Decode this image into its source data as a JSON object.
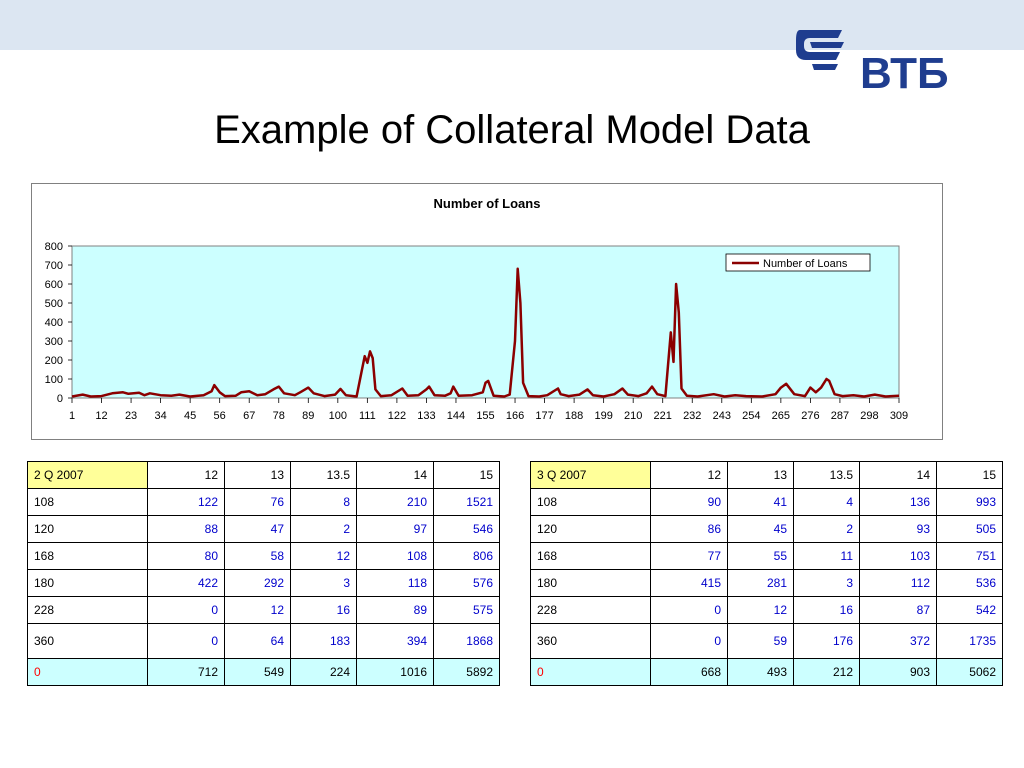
{
  "slide": {
    "title": "Example of Collateral Model Data"
  },
  "logo": {
    "text": "ВТБ",
    "color": "#1f3d8f"
  },
  "chart_data": {
    "type": "line",
    "title": "Number of Loans",
    "xlabel": "",
    "ylabel": "",
    "ylim": [
      0,
      800
    ],
    "yticks": [
      0,
      100,
      200,
      300,
      400,
      500,
      600,
      700,
      800
    ],
    "xlim": [
      1,
      309
    ],
    "xticks": [
      1,
      12,
      23,
      34,
      45,
      56,
      67,
      78,
      89,
      100,
      111,
      122,
      133,
      144,
      155,
      166,
      177,
      188,
      199,
      210,
      221,
      232,
      243,
      254,
      265,
      276,
      287,
      298,
      309
    ],
    "grid": false,
    "legend": "top-right",
    "plot_background": "#ccffff",
    "series": [
      {
        "name": "Number of Loans",
        "color": "#8b0000",
        "points": [
          [
            1,
            8
          ],
          [
            5,
            18
          ],
          [
            8,
            8
          ],
          [
            12,
            10
          ],
          [
            16,
            25
          ],
          [
            20,
            30
          ],
          [
            22,
            22
          ],
          [
            26,
            28
          ],
          [
            28,
            15
          ],
          [
            30,
            25
          ],
          [
            34,
            15
          ],
          [
            38,
            12
          ],
          [
            41,
            18
          ],
          [
            45,
            8
          ],
          [
            50,
            15
          ],
          [
            53,
            35
          ],
          [
            54,
            68
          ],
          [
            56,
            30
          ],
          [
            58,
            10
          ],
          [
            62,
            12
          ],
          [
            64,
            30
          ],
          [
            67,
            35
          ],
          [
            70,
            15
          ],
          [
            73,
            20
          ],
          [
            76,
            45
          ],
          [
            78,
            60
          ],
          [
            80,
            25
          ],
          [
            84,
            15
          ],
          [
            86,
            30
          ],
          [
            89,
            55
          ],
          [
            91,
            25
          ],
          [
            95,
            10
          ],
          [
            99,
            18
          ],
          [
            101,
            48
          ],
          [
            103,
            15
          ],
          [
            107,
            8
          ],
          [
            109,
            150
          ],
          [
            110,
            220
          ],
          [
            111,
            185
          ],
          [
            112,
            245
          ],
          [
            113,
            210
          ],
          [
            114,
            45
          ],
          [
            116,
            10
          ],
          [
            120,
            15
          ],
          [
            124,
            50
          ],
          [
            126,
            12
          ],
          [
            130,
            15
          ],
          [
            133,
            45
          ],
          [
            134,
            60
          ],
          [
            136,
            15
          ],
          [
            140,
            12
          ],
          [
            142,
            25
          ],
          [
            143,
            60
          ],
          [
            145,
            12
          ],
          [
            150,
            15
          ],
          [
            154,
            30
          ],
          [
            155,
            80
          ],
          [
            156,
            90
          ],
          [
            158,
            12
          ],
          [
            162,
            8
          ],
          [
            164,
            18
          ],
          [
            166,
            300
          ],
          [
            167,
            680
          ],
          [
            168,
            500
          ],
          [
            169,
            80
          ],
          [
            171,
            10
          ],
          [
            175,
            8
          ],
          [
            178,
            15
          ],
          [
            182,
            50
          ],
          [
            183,
            20
          ],
          [
            186,
            10
          ],
          [
            190,
            18
          ],
          [
            193,
            45
          ],
          [
            195,
            15
          ],
          [
            199,
            8
          ],
          [
            203,
            20
          ],
          [
            206,
            50
          ],
          [
            208,
            18
          ],
          [
            212,
            10
          ],
          [
            215,
            25
          ],
          [
            217,
            60
          ],
          [
            219,
            20
          ],
          [
            222,
            10
          ],
          [
            224,
            345
          ],
          [
            225,
            190
          ],
          [
            226,
            600
          ],
          [
            227,
            450
          ],
          [
            228,
            50
          ],
          [
            230,
            12
          ],
          [
            234,
            8
          ],
          [
            240,
            20
          ],
          [
            244,
            8
          ],
          [
            248,
            15
          ],
          [
            252,
            10
          ],
          [
            258,
            8
          ],
          [
            263,
            20
          ],
          [
            265,
            55
          ],
          [
            267,
            75
          ],
          [
            270,
            20
          ],
          [
            274,
            10
          ],
          [
            276,
            55
          ],
          [
            278,
            30
          ],
          [
            280,
            55
          ],
          [
            282,
            100
          ],
          [
            283,
            90
          ],
          [
            285,
            20
          ],
          [
            288,
            10
          ],
          [
            292,
            15
          ],
          [
            296,
            8
          ],
          [
            300,
            18
          ],
          [
            304,
            8
          ],
          [
            309,
            12
          ]
        ]
      }
    ]
  },
  "tables": [
    {
      "header": [
        "2 Q 2007",
        "12",
        "13",
        "13.5",
        "14",
        "15"
      ],
      "rows": [
        [
          "108",
          "122",
          "76",
          "8",
          "210",
          "1521"
        ],
        [
          "120",
          "88",
          "47",
          "2",
          "97",
          "546"
        ],
        [
          "168",
          "80",
          "58",
          "12",
          "108",
          "806"
        ],
        [
          "180",
          "422",
          "292",
          "3",
          "118",
          "576"
        ],
        [
          "228",
          "0",
          "12",
          "16",
          "89",
          "575"
        ],
        [
          "360",
          "0",
          "64",
          "183",
          "394",
          "1868"
        ]
      ],
      "total": [
        "0",
        "712",
        "549",
        "224",
        "1016",
        "5892"
      ]
    },
    {
      "header": [
        "3 Q 2007",
        "12",
        "13",
        "13.5",
        "14",
        "15"
      ],
      "rows": [
        [
          "108",
          "90",
          "41",
          "4",
          "136",
          "993"
        ],
        [
          "120",
          "86",
          "45",
          "2",
          "93",
          "505"
        ],
        [
          "168",
          "77",
          "55",
          "11",
          "103",
          "751"
        ],
        [
          "180",
          "415",
          "281",
          "3",
          "112",
          "536"
        ],
        [
          "228",
          "0",
          "12",
          "16",
          "87",
          "542"
        ],
        [
          "360",
          "0",
          "59",
          "176",
          "372",
          "1735"
        ]
      ],
      "total": [
        "0",
        "668",
        "493",
        "212",
        "903",
        "5062"
      ]
    }
  ],
  "colors": {
    "header_cell": "#ffff99",
    "total_row": "#ccffff",
    "value_text": "#0000cc",
    "total_label": "#ff0000"
  }
}
